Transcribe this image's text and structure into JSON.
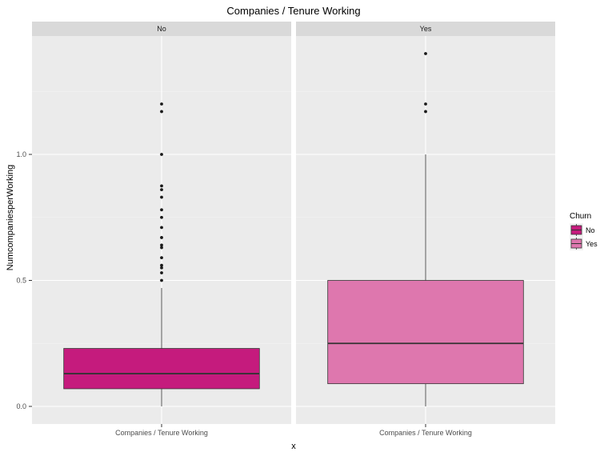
{
  "chart_data": {
    "type": "boxplot",
    "title": "Companies / Tenure Working",
    "xlabel": "x",
    "ylabel": "NumcompaniesperWorking",
    "ylim": [
      -0.07,
      1.57
    ],
    "y_ticks": [
      "0.0",
      "0.5",
      "1.0"
    ],
    "y_tick_values": [
      0,
      0.5,
      1.0
    ],
    "facet_label_colour": "#d9d9d9",
    "panel_bg": "#ebebeb",
    "legend": {
      "title": "Churn",
      "position": "right",
      "entries": [
        "No",
        "Yes"
      ]
    },
    "facets": [
      {
        "strip": "No",
        "category": "Companies / Tenure Working",
        "fill": "#c51b7d",
        "whisker_low": 0,
        "q1": 0.07,
        "median": 0.13,
        "q3": 0.23,
        "whisker_high": 0.47,
        "outliers": [
          0.5,
          0.53,
          0.55,
          0.56,
          0.59,
          0.63,
          0.64,
          0.67,
          0.71,
          0.75,
          0.78,
          0.83,
          0.86,
          0.875,
          1.0,
          1.17,
          1.2
        ]
      },
      {
        "strip": "Yes",
        "category": "Companies / Tenure Working",
        "fill": "#de77ae",
        "whisker_low": 0,
        "q1": 0.09,
        "median": 0.25,
        "q3": 0.5,
        "whisker_high": 1.0,
        "outliers": [
          1.17,
          1.2,
          1.4
        ]
      }
    ]
  }
}
